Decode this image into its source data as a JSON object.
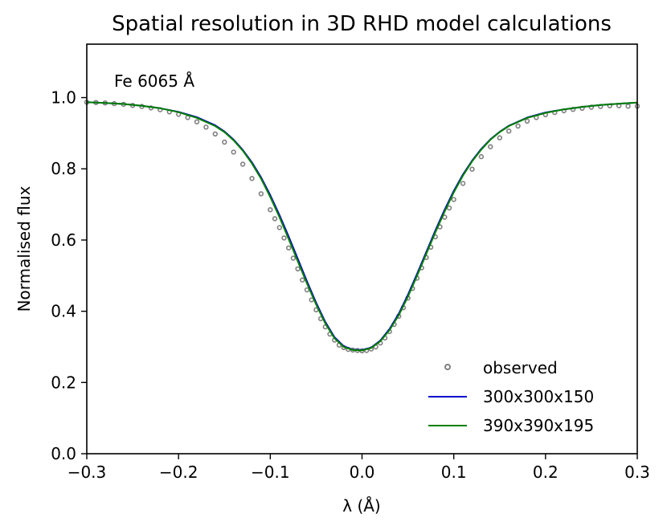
{
  "chart_data": {
    "type": "line",
    "title": "Spatial resolution in 3D RHD model calculations",
    "annotation": "Fe 6065 Å",
    "xlabel": "λ (Å)",
    "ylabel": "Normalised flux",
    "xlim": [
      -0.3,
      0.3
    ],
    "ylim": [
      0.0,
      1.15
    ],
    "xticks": [
      -0.3,
      -0.2,
      -0.1,
      0.0,
      0.1,
      0.2,
      0.3
    ],
    "xtick_labels": [
      "−0.3",
      "−0.2",
      "−0.1",
      "0.0",
      "0.1",
      "0.2",
      "0.3"
    ],
    "yticks": [
      0.0,
      0.2,
      0.4,
      0.6,
      0.8,
      1.0
    ],
    "ytick_labels": [
      "0.0",
      "0.2",
      "0.4",
      "0.6",
      "0.8",
      "1.0"
    ],
    "grid": false,
    "legend_position": "lower-right",
    "series": [
      {
        "name": "observed",
        "style": "markers",
        "color": "#808080",
        "x": [
          -0.3,
          -0.29,
          -0.28,
          -0.27,
          -0.26,
          -0.25,
          -0.24,
          -0.23,
          -0.22,
          -0.21,
          -0.2,
          -0.19,
          -0.18,
          -0.17,
          -0.16,
          -0.15,
          -0.14,
          -0.13,
          -0.12,
          -0.11,
          -0.1,
          -0.095,
          -0.09,
          -0.085,
          -0.08,
          -0.075,
          -0.07,
          -0.065,
          -0.06,
          -0.055,
          -0.05,
          -0.045,
          -0.04,
          -0.035,
          -0.03,
          -0.025,
          -0.02,
          -0.015,
          -0.01,
          -0.005,
          0.0,
          0.005,
          0.01,
          0.015,
          0.02,
          0.025,
          0.03,
          0.035,
          0.04,
          0.045,
          0.05,
          0.055,
          0.06,
          0.065,
          0.07,
          0.075,
          0.08,
          0.085,
          0.09,
          0.095,
          0.1,
          0.11,
          0.12,
          0.13,
          0.14,
          0.15,
          0.16,
          0.17,
          0.18,
          0.19,
          0.2,
          0.21,
          0.22,
          0.23,
          0.24,
          0.25,
          0.26,
          0.27,
          0.28,
          0.29,
          0.3
        ],
        "y": [
          0.987,
          0.986,
          0.985,
          0.983,
          0.981,
          0.978,
          0.975,
          0.971,
          0.966,
          0.96,
          0.953,
          0.944,
          0.932,
          0.917,
          0.898,
          0.875,
          0.847,
          0.813,
          0.773,
          0.73,
          0.685,
          0.66,
          0.635,
          0.606,
          0.578,
          0.549,
          0.519,
          0.488,
          0.46,
          0.432,
          0.404,
          0.379,
          0.356,
          0.336,
          0.319,
          0.305,
          0.298,
          0.293,
          0.291,
          0.29,
          0.289,
          0.29,
          0.294,
          0.3,
          0.311,
          0.325,
          0.343,
          0.363,
          0.386,
          0.41,
          0.437,
          0.464,
          0.493,
          0.522,
          0.551,
          0.58,
          0.609,
          0.637,
          0.664,
          0.69,
          0.714,
          0.759,
          0.799,
          0.834,
          0.862,
          0.887,
          0.906,
          0.92,
          0.934,
          0.944,
          0.952,
          0.958,
          0.963,
          0.967,
          0.97,
          0.973,
          0.975,
          0.977,
          0.977,
          0.976,
          0.976
        ]
      },
      {
        "name": "300x300x150",
        "style": "line",
        "color": "#0000cc",
        "x": [
          -0.3,
          -0.28,
          -0.26,
          -0.24,
          -0.22,
          -0.2,
          -0.18,
          -0.16,
          -0.15,
          -0.14,
          -0.13,
          -0.12,
          -0.11,
          -0.1,
          -0.09,
          -0.08,
          -0.07,
          -0.06,
          -0.05,
          -0.04,
          -0.03,
          -0.02,
          -0.01,
          0.0,
          0.01,
          0.02,
          0.03,
          0.04,
          0.05,
          0.06,
          0.07,
          0.08,
          0.09,
          0.1,
          0.11,
          0.12,
          0.13,
          0.14,
          0.15,
          0.16,
          0.18,
          0.2,
          0.22,
          0.24,
          0.26,
          0.28,
          0.3
        ],
        "y": [
          0.987,
          0.985,
          0.982,
          0.977,
          0.97,
          0.96,
          0.945,
          0.922,
          0.905,
          0.882,
          0.853,
          0.818,
          0.776,
          0.726,
          0.67,
          0.61,
          0.547,
          0.484,
          0.424,
          0.37,
          0.327,
          0.302,
          0.292,
          0.291,
          0.298,
          0.318,
          0.35,
          0.393,
          0.446,
          0.505,
          0.566,
          0.627,
          0.685,
          0.738,
          0.784,
          0.823,
          0.856,
          0.883,
          0.904,
          0.921,
          0.944,
          0.958,
          0.967,
          0.974,
          0.979,
          0.983,
          0.986
        ]
      },
      {
        "name": "390x390x195",
        "style": "line",
        "color": "#007f00",
        "x": [
          -0.3,
          -0.28,
          -0.26,
          -0.24,
          -0.22,
          -0.2,
          -0.18,
          -0.16,
          -0.15,
          -0.14,
          -0.13,
          -0.12,
          -0.11,
          -0.1,
          -0.09,
          -0.08,
          -0.07,
          -0.06,
          -0.05,
          -0.04,
          -0.03,
          -0.02,
          -0.01,
          0.0,
          0.01,
          0.02,
          0.03,
          0.04,
          0.05,
          0.06,
          0.07,
          0.08,
          0.09,
          0.1,
          0.11,
          0.12,
          0.13,
          0.14,
          0.15,
          0.16,
          0.18,
          0.2,
          0.22,
          0.24,
          0.26,
          0.28,
          0.3
        ],
        "y": [
          0.987,
          0.985,
          0.982,
          0.977,
          0.97,
          0.959,
          0.943,
          0.92,
          0.903,
          0.88,
          0.851,
          0.815,
          0.772,
          0.721,
          0.664,
          0.603,
          0.54,
          0.478,
          0.419,
          0.366,
          0.324,
          0.3,
          0.291,
          0.29,
          0.297,
          0.316,
          0.347,
          0.389,
          0.441,
          0.5,
          0.561,
          0.622,
          0.68,
          0.734,
          0.781,
          0.821,
          0.854,
          0.882,
          0.903,
          0.92,
          0.943,
          0.957,
          0.967,
          0.974,
          0.979,
          0.983,
          0.986
        ]
      }
    ]
  }
}
